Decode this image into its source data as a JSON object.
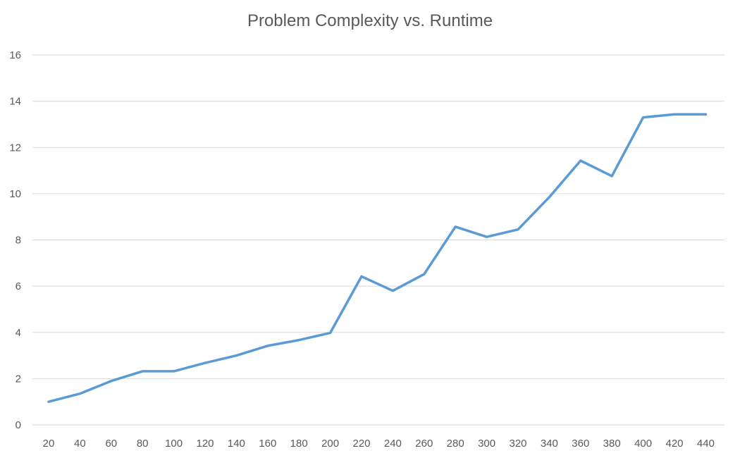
{
  "chart_data": {
    "type": "line",
    "title": "Problem Complexity vs.  Runtime",
    "xlabel": "",
    "ylabel": "",
    "categories": [
      "20",
      "40",
      "60",
      "80",
      "100",
      "120",
      "140",
      "160",
      "180",
      "200",
      "220",
      "240",
      "260",
      "280",
      "300",
      "320",
      "340",
      "360",
      "380",
      "400",
      "420",
      "440"
    ],
    "series": [
      {
        "values": [
          1.0,
          1.35,
          1.9,
          2.32,
          2.32,
          2.68,
          3.0,
          3.42,
          3.67,
          3.98,
          6.42,
          5.8,
          6.52,
          8.57,
          8.13,
          8.45,
          9.85,
          11.43,
          10.76,
          13.3,
          13.43,
          13.43
        ],
        "color": "#5b9bd5"
      }
    ],
    "ylim": [
      0,
      16
    ],
    "yticks": [
      0,
      2,
      4,
      6,
      8,
      10,
      12,
      14,
      16
    ],
    "grid": true,
    "legend": "none"
  }
}
